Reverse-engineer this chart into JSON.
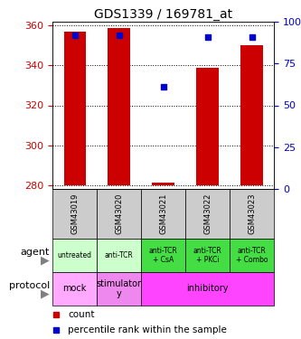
{
  "title": "GDS1339 / 169781_at",
  "samples": [
    "GSM43019",
    "GSM43020",
    "GSM43021",
    "GSM43022",
    "GSM43023"
  ],
  "count_values": [
    357,
    359,
    281,
    339,
    350
  ],
  "count_min": [
    280,
    280,
    280,
    280,
    280
  ],
  "percentile_values": [
    92,
    92,
    61,
    91,
    91
  ],
  "ylim_left": [
    278,
    362
  ],
  "ylim_right": [
    0,
    100
  ],
  "yticks_left": [
    280,
    300,
    320,
    340,
    360
  ],
  "yticks_right": [
    0,
    25,
    50,
    75,
    100
  ],
  "bar_color": "#cc0000",
  "dot_color": "#0000cc",
  "agent_labels": [
    "untreated",
    "anti-TCR",
    "anti-TCR\n+ CsA",
    "anti-TCR\n+ PKCi",
    "anti-TCR\n+ Combo"
  ],
  "agent_colors": [
    "#ccffcc",
    "#ccffcc",
    "#44dd44",
    "#44dd44",
    "#44dd44"
  ],
  "protocol_spans": [
    [
      0,
      1,
      "mock",
      "#ffaaff"
    ],
    [
      1,
      2,
      "stimulator\ny",
      "#ee88ee"
    ],
    [
      2,
      5,
      "inhibitory",
      "#ff44ff"
    ]
  ],
  "sample_bg": "#cccccc",
  "left_label_color": "#cc0000",
  "right_label_color": "#0000cc",
  "legend_items": [
    [
      "#cc0000",
      "count"
    ],
    [
      "#0000cc",
      "percentile rank within the sample"
    ]
  ]
}
